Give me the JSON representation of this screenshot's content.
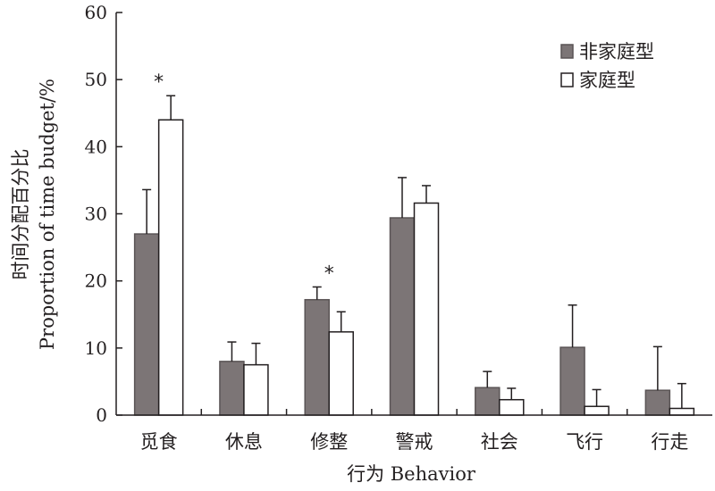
{
  "chart_data": {
    "type": "bar",
    "categories": [
      "觅食",
      "休息",
      "修整",
      "警戒",
      "社会",
      "飞行",
      "行走"
    ],
    "series": [
      {
        "name": "非家庭型",
        "values": [
          27.0,
          8.0,
          17.2,
          29.4,
          4.1,
          10.1,
          3.7
        ],
        "errors": [
          6.6,
          2.9,
          1.9,
          6.0,
          2.4,
          6.3,
          6.5
        ],
        "color": "#7c7576",
        "stroke": "#5a5455"
      },
      {
        "name": "家庭型",
        "values": [
          44.0,
          7.5,
          12.4,
          31.6,
          2.3,
          1.3,
          1.0
        ],
        "errors": [
          3.6,
          3.2,
          3.0,
          2.6,
          1.7,
          2.5,
          3.7
        ],
        "color": "#ffffff",
        "stroke": "#231f20"
      }
    ],
    "significance": [
      {
        "category": "觅食",
        "mark": "*"
      },
      {
        "category": "修整",
        "mark": "*"
      }
    ],
    "y_ticks": [
      "0",
      "10",
      "20",
      "30",
      "40",
      "50",
      "60"
    ],
    "ylim": [
      0,
      60
    ],
    "ylabel_cn": "时间分配百分比",
    "ylabel_en": "Proportion of time budget/%",
    "xlabel": "行为 Behavior",
    "legend_position": "top-right",
    "grid": false
  }
}
